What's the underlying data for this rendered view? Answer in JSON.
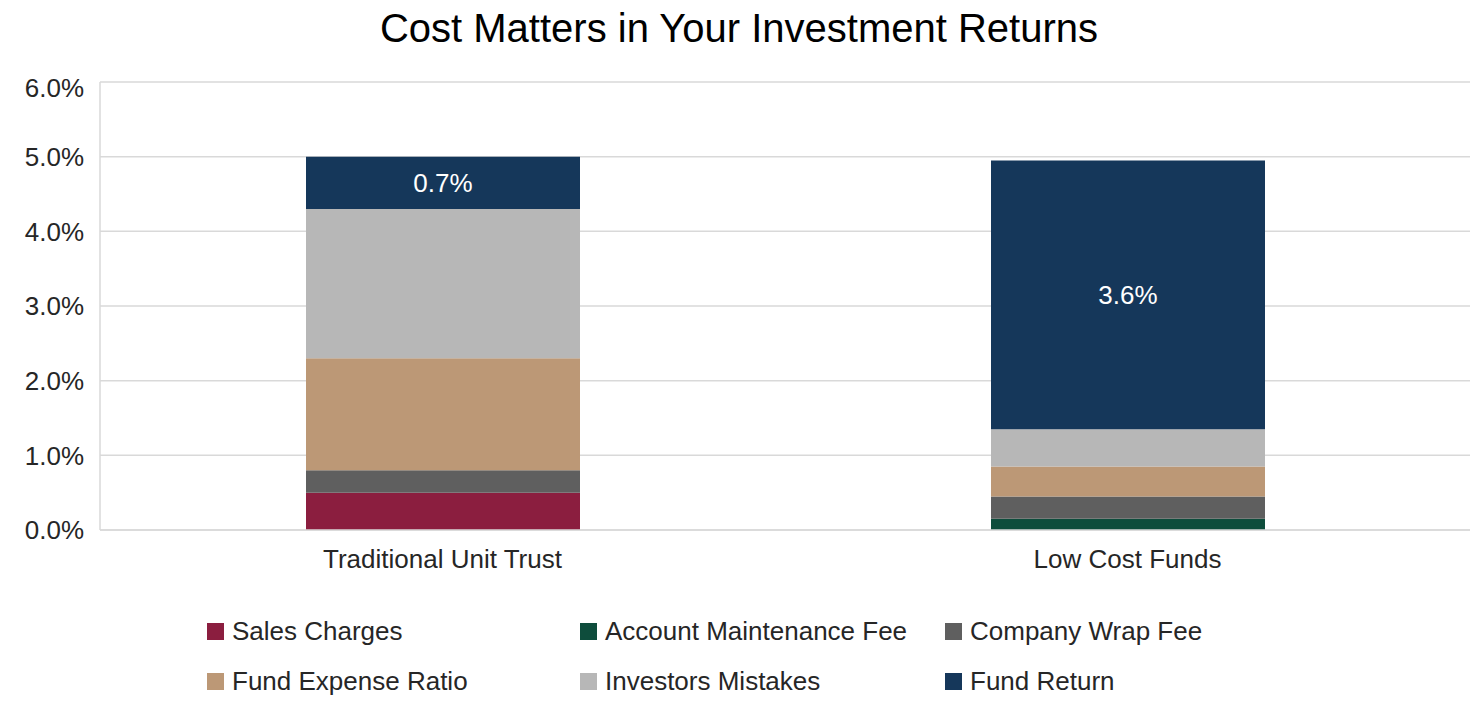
{
  "chart_data": {
    "type": "bar",
    "title": "Cost Matters in Your Investment Returns",
    "categories": [
      "Traditional Unit Trust",
      "Low Cost Funds"
    ],
    "stacked": true,
    "grid": true,
    "legend": "bottom",
    "ylim": [
      0,
      6
    ],
    "yticks": [
      {
        "value": 0,
        "label": "0.0%"
      },
      {
        "value": 1,
        "label": "1.0%"
      },
      {
        "value": 2,
        "label": "2.0%"
      },
      {
        "value": 3,
        "label": "3.0%"
      },
      {
        "value": 4,
        "label": "4.0%"
      },
      {
        "value": 5,
        "label": "5.0%"
      },
      {
        "value": 6,
        "label": "6.0%"
      }
    ],
    "series": [
      {
        "name": "Sales Charges",
        "color": "#8b1e3f",
        "values": [
          0.5,
          0
        ]
      },
      {
        "name": "Account Maintenance Fee",
        "color": "#0e4d3c",
        "values": [
          0,
          0.15
        ]
      },
      {
        "name": "Company Wrap Fee",
        "color": "#5f5f5f",
        "values": [
          0.3,
          0.3
        ]
      },
      {
        "name": "Fund Expense Ratio",
        "color": "#bc9876",
        "values": [
          1.5,
          0.4
        ]
      },
      {
        "name": "Investors Mistakes",
        "color": "#b7b7b7",
        "values": [
          2.0,
          0.5
        ]
      },
      {
        "name": "Fund Return",
        "color": "#15375a",
        "values": [
          0.7,
          3.6
        ],
        "data_labels": true,
        "value_labels": [
          "0.7%",
          "3.6%"
        ]
      }
    ]
  }
}
